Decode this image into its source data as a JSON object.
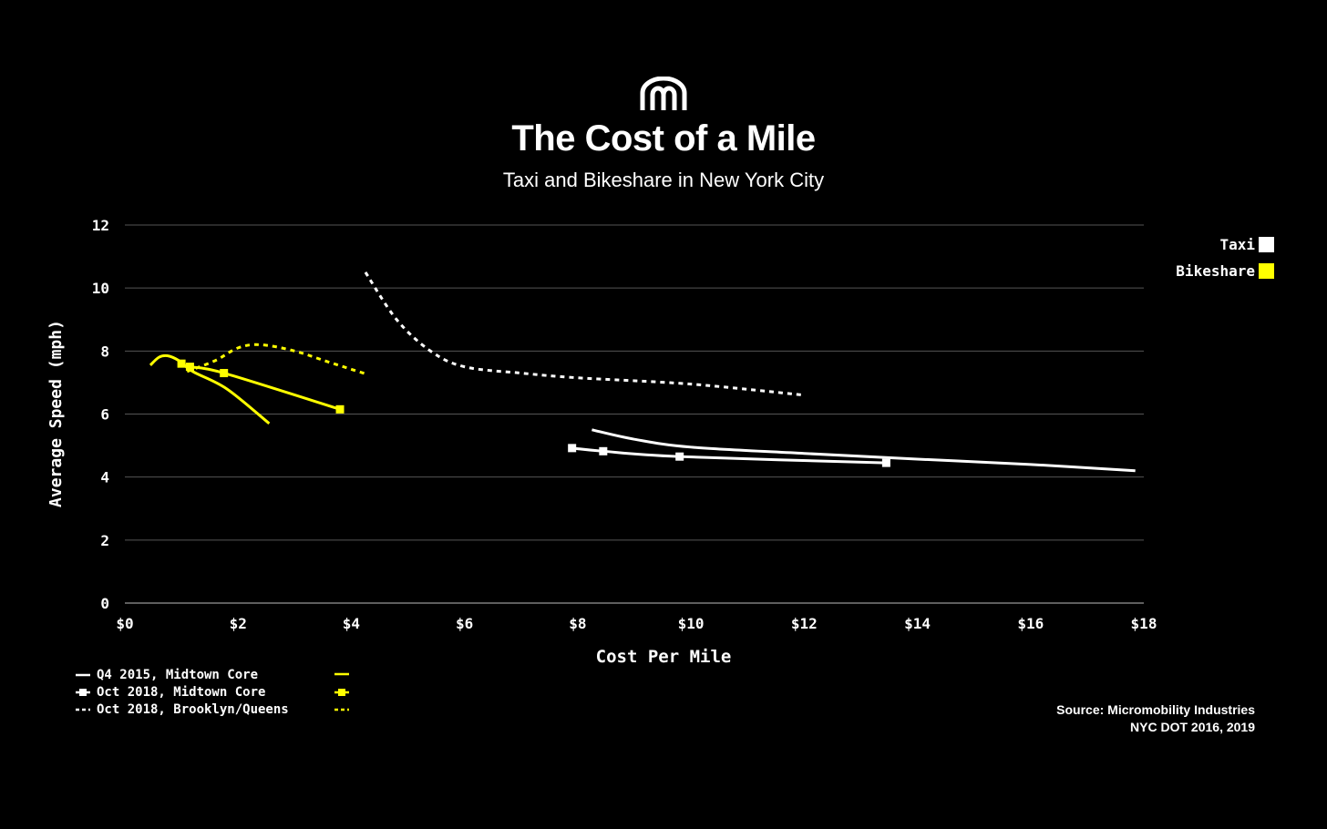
{
  "header": {
    "title": "The Cost of a Mile",
    "subtitle": "Taxi and Bikeshare in New York City",
    "logo_icon": "micromobility-arches-logo"
  },
  "colors": {
    "background": "#000000",
    "taxi": "#ffffff",
    "bikeshare": "#ffff00",
    "grid": "#555555"
  },
  "categories_legend": [
    {
      "label": "Taxi",
      "color": "#ffffff"
    },
    {
      "label": "Bikeshare",
      "color": "#ffff00"
    }
  ],
  "style_legend": [
    {
      "label": "Q4 2015, Midtown Core",
      "style": "solid"
    },
    {
      "label": "Oct 2018, Midtown Core",
      "style": "solid-markers"
    },
    {
      "label": "Oct 2018, Brooklyn/Queens",
      "style": "dashed"
    }
  ],
  "source": {
    "line1": "Source: Micromobility Industries",
    "line2": "NYC DOT 2016, 2019"
  },
  "chart_data": {
    "type": "line",
    "xlabel": "Cost Per Mile",
    "ylabel": "Average Speed (mph)",
    "xlim": [
      0,
      18
    ],
    "ylim": [
      0,
      12
    ],
    "xticks": [
      0,
      2,
      4,
      6,
      8,
      10,
      12,
      14,
      16,
      18
    ],
    "xtick_labels": [
      "$0",
      "$2",
      "$4",
      "$6",
      "$8",
      "$10",
      "$12",
      "$14",
      "$16",
      "$18"
    ],
    "yticks": [
      0,
      2,
      4,
      6,
      8,
      10,
      12
    ],
    "ytick_labels": [
      "0",
      "2",
      "4",
      "6",
      "8",
      "10",
      "12"
    ],
    "grid": true,
    "legend_placement": "top-right",
    "series": [
      {
        "category": "Taxi",
        "period": "Q4 2015, Midtown Core",
        "style": "solid",
        "color": "#ffffff",
        "points": [
          [
            8.25,
            5.5
          ],
          [
            9,
            5.2
          ],
          [
            10,
            4.95
          ],
          [
            12,
            4.75
          ],
          [
            14,
            4.57
          ],
          [
            16,
            4.4
          ],
          [
            17.85,
            4.2
          ]
        ]
      },
      {
        "category": "Taxi",
        "period": "Oct 2018, Midtown Core",
        "style": "solid-markers",
        "color": "#ffffff",
        "points": [
          [
            7.9,
            4.92
          ],
          [
            8.45,
            4.82
          ],
          [
            9.8,
            4.65
          ],
          [
            13.45,
            4.45
          ]
        ]
      },
      {
        "category": "Taxi",
        "period": "Oct 2018, Brooklyn/Queens",
        "style": "dashed",
        "color": "#ffffff",
        "points": [
          [
            4.25,
            10.5
          ],
          [
            4.8,
            9.0
          ],
          [
            5.4,
            8.0
          ],
          [
            6,
            7.5
          ],
          [
            7,
            7.3
          ],
          [
            8,
            7.15
          ],
          [
            10,
            6.95
          ],
          [
            12,
            6.6
          ]
        ]
      },
      {
        "category": "Bikeshare",
        "period": "Q4 2015, Midtown Core",
        "style": "solid",
        "color": "#ffff00",
        "points": [
          [
            0.45,
            7.55
          ],
          [
            0.6,
            7.8
          ],
          [
            0.75,
            7.85
          ],
          [
            0.95,
            7.7
          ],
          [
            1.2,
            7.35
          ],
          [
            1.8,
            6.8
          ],
          [
            2.55,
            5.7
          ]
        ]
      },
      {
        "category": "Bikeshare",
        "period": "Oct 2018, Midtown Core",
        "style": "solid-markers",
        "color": "#ffff00",
        "points": [
          [
            1.0,
            7.6
          ],
          [
            1.15,
            7.5
          ],
          [
            1.75,
            7.3
          ],
          [
            3.8,
            6.15
          ]
        ]
      },
      {
        "category": "Bikeshare",
        "period": "Oct 2018, Brooklyn/Queens",
        "style": "dashed",
        "color": "#ffff00",
        "points": [
          [
            1.1,
            7.35
          ],
          [
            1.6,
            7.7
          ],
          [
            2.0,
            8.1
          ],
          [
            2.4,
            8.2
          ],
          [
            3.0,
            8.0
          ],
          [
            3.6,
            7.65
          ],
          [
            4.3,
            7.25
          ]
        ]
      }
    ]
  }
}
